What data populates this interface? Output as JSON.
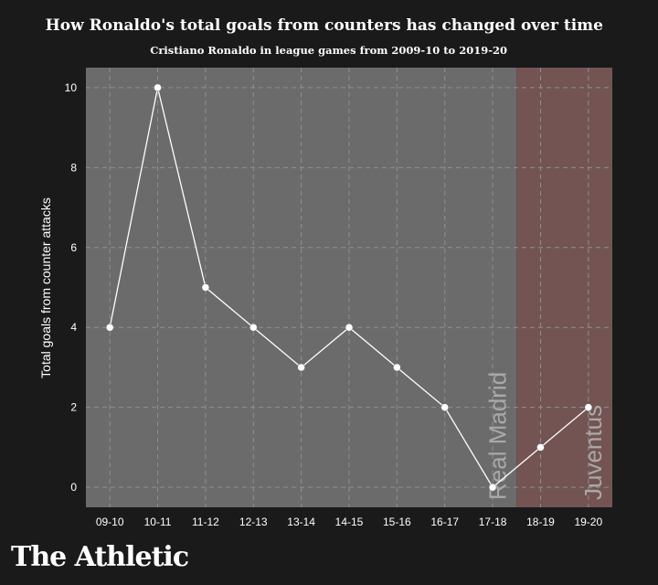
{
  "chart_data": {
    "type": "line",
    "title": "How Ronaldo's total goals from counters has changed over time",
    "subtitle": "Cristiano Ronaldo in league games from 2009-10 to 2019-20",
    "ylabel": "Total goals from counter attacks",
    "xlabel": "",
    "categories": [
      "09-10",
      "10-11",
      "11-12",
      "12-13",
      "13-14",
      "14-15",
      "15-16",
      "16-17",
      "17-18",
      "18-19",
      "19-20"
    ],
    "values": [
      4,
      10,
      5,
      4,
      3,
      4,
      3,
      2,
      0,
      1,
      2
    ],
    "ylim": [
      -0.5,
      10.5
    ],
    "yticks": [
      0,
      2,
      4,
      6,
      8,
      10
    ],
    "grid": true,
    "regions": [
      {
        "label": "Real Madrid",
        "from": "09-10",
        "to": "17-18",
        "color": "#6b6b6b"
      },
      {
        "label": "Juventus",
        "from": "18-19",
        "to": "19-20",
        "color": "#6b5756"
      }
    ],
    "line_color": "#ffffff"
  },
  "brand": "The Athletic"
}
